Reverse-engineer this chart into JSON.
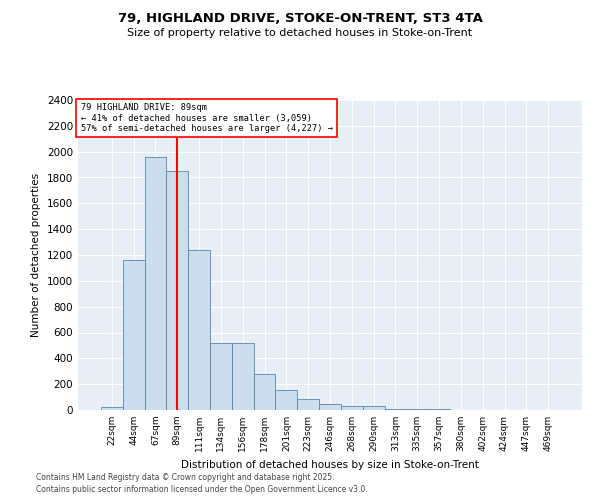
{
  "title": "79, HIGHLAND DRIVE, STOKE-ON-TRENT, ST3 4TA",
  "subtitle": "Size of property relative to detached houses in Stoke-on-Trent",
  "xlabel": "Distribution of detached houses by size in Stoke-on-Trent",
  "ylabel": "Number of detached properties",
  "categories": [
    "22sqm",
    "44sqm",
    "67sqm",
    "89sqm",
    "111sqm",
    "134sqm",
    "156sqm",
    "178sqm",
    "201sqm",
    "223sqm",
    "246sqm",
    "268sqm",
    "290sqm",
    "313sqm",
    "335sqm",
    "357sqm",
    "380sqm",
    "402sqm",
    "424sqm",
    "447sqm",
    "469sqm"
  ],
  "values": [
    25,
    1165,
    1960,
    1850,
    1240,
    515,
    515,
    275,
    155,
    85,
    45,
    30,
    30,
    10,
    5,
    5,
    3,
    2,
    2,
    2,
    2
  ],
  "bar_color": "#ccdded",
  "bar_edge_color": "#5588aa",
  "vline_x": 3,
  "vline_color": "red",
  "annotation_title": "79 HIGHLAND DRIVE: 89sqm",
  "annotation_line1": "← 41% of detached houses are smaller (3,059)",
  "annotation_line2": "57% of semi-detached houses are larger (4,227) →",
  "ylim": [
    0,
    2400
  ],
  "yticks": [
    0,
    200,
    400,
    600,
    800,
    1000,
    1200,
    1400,
    1600,
    1800,
    2000,
    2200,
    2400
  ],
  "bg_color": "#e8eef5",
  "footnote1": "Contains HM Land Registry data © Crown copyright and database right 2025.",
  "footnote2": "Contains public sector information licensed under the Open Government Licence v3.0."
}
